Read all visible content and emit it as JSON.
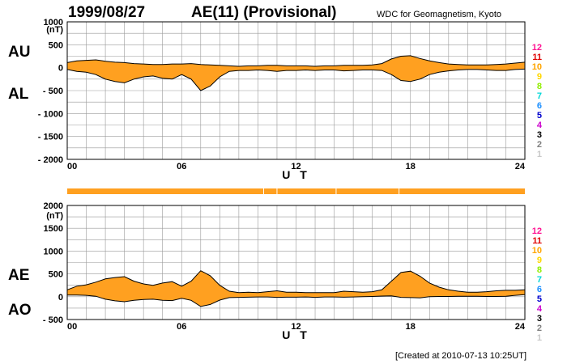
{
  "header": {
    "date": "1999/08/27",
    "title": "AE(11) (Provisional)",
    "source": "WDC for Geomagnetism, Kyoto"
  },
  "footer": {
    "created": "[Created at 2010-07-13 10:25UT]"
  },
  "colors": {
    "fill": "#ffa020",
    "line": "#000000",
    "grid": "#999999",
    "bar": "#ffa020"
  },
  "legend": {
    "items": [
      {
        "label": "12",
        "color": "#ff1493"
      },
      {
        "label": "11",
        "color": "#e00000"
      },
      {
        "label": "10",
        "color": "#ffa500"
      },
      {
        "label": "9",
        "color": "#ffd700"
      },
      {
        "label": "8",
        "color": "#90ee00"
      },
      {
        "label": "7",
        "color": "#00d8d8"
      },
      {
        "label": "6",
        "color": "#1e90ff"
      },
      {
        "label": "5",
        "color": "#0000cd"
      },
      {
        "label": "4",
        "color": "#cc00cc"
      },
      {
        "label": "3",
        "color": "#000000"
      },
      {
        "label": "2",
        "color": "#808080"
      },
      {
        "label": "1",
        "color": "#c8c8c8"
      }
    ]
  },
  "chart_data": [
    {
      "type": "area",
      "name_labels": [
        "AU",
        "AL"
      ],
      "unit": "(nT)",
      "xlabel": "U T",
      "xlim": [
        0,
        24
      ],
      "ylim": [
        -2000,
        1000
      ],
      "x_ticks": [
        "00",
        "06",
        "12",
        "18",
        "24"
      ],
      "y_ticks": [
        "1000",
        "500",
        "0",
        "- 500",
        "- 1000",
        "- 1500",
        "- 2000"
      ],
      "y_tick_values": [
        1000,
        500,
        0,
        -500,
        -1000,
        -1500,
        -2000
      ],
      "x": [
        0,
        0.5,
        1,
        1.5,
        2,
        2.5,
        3,
        3.5,
        4,
        4.5,
        5,
        5.5,
        6,
        6.5,
        7,
        7.5,
        8,
        8.5,
        9,
        9.5,
        10,
        10.5,
        11,
        11.5,
        12,
        12.5,
        13,
        13.5,
        14,
        14.5,
        15,
        15.5,
        16,
        16.5,
        17,
        17.5,
        18,
        18.5,
        19,
        19.5,
        20,
        20.5,
        21,
        21.5,
        22,
        22.5,
        23,
        23.5,
        24
      ],
      "series": [
        {
          "name": "AU",
          "values": [
            110,
            150,
            160,
            170,
            140,
            120,
            110,
            90,
            80,
            70,
            70,
            80,
            80,
            90,
            70,
            60,
            50,
            40,
            30,
            40,
            40,
            50,
            50,
            40,
            40,
            40,
            30,
            40,
            40,
            50,
            50,
            50,
            60,
            90,
            190,
            250,
            260,
            200,
            150,
            110,
            80,
            70,
            60,
            60,
            60,
            70,
            80,
            100,
            120
          ]
        },
        {
          "name": "AL",
          "values": [
            -40,
            -80,
            -100,
            -150,
            -250,
            -300,
            -330,
            -250,
            -200,
            -180,
            -230,
            -250,
            -150,
            -250,
            -500,
            -400,
            -200,
            -80,
            -60,
            -60,
            -50,
            -60,
            -80,
            -60,
            -60,
            -50,
            -60,
            -50,
            -50,
            -70,
            -60,
            -50,
            -50,
            -60,
            -150,
            -280,
            -300,
            -250,
            -150,
            -100,
            -70,
            -50,
            -40,
            -40,
            -50,
            -60,
            -60,
            -40,
            -30
          ]
        }
      ]
    },
    {
      "type": "area",
      "name_labels": [
        "AE",
        "AO"
      ],
      "unit": "(nT)",
      "xlabel": "U T",
      "xlim": [
        0,
        24
      ],
      "ylim": [
        -500,
        2000
      ],
      "x_ticks": [
        "00",
        "06",
        "12",
        "18",
        "24"
      ],
      "y_ticks": [
        "2000",
        "1500",
        "1000",
        "500",
        "0",
        "- 500"
      ],
      "y_tick_values": [
        2000,
        1500,
        1000,
        500,
        0,
        -500
      ],
      "x": [
        0,
        0.5,
        1,
        1.5,
        2,
        2.5,
        3,
        3.5,
        4,
        4.5,
        5,
        5.5,
        6,
        6.5,
        7,
        7.5,
        8,
        8.5,
        9,
        9.5,
        10,
        10.5,
        11,
        11.5,
        12,
        12.5,
        13,
        13.5,
        14,
        14.5,
        15,
        15.5,
        16,
        16.5,
        17,
        17.5,
        18,
        18.5,
        19,
        19.5,
        20,
        20.5,
        21,
        21.5,
        22,
        22.5,
        23,
        23.5,
        24
      ],
      "series": [
        {
          "name": "AE",
          "values": [
            150,
            230,
            260,
            320,
            390,
            420,
            440,
            340,
            280,
            250,
            300,
            330,
            230,
            340,
            570,
            460,
            250,
            120,
            90,
            100,
            90,
            110,
            130,
            100,
            100,
            90,
            90,
            90,
            90,
            120,
            110,
            100,
            110,
            150,
            340,
            530,
            560,
            450,
            300,
            210,
            150,
            120,
            100,
            100,
            110,
            130,
            140,
            140,
            150
          ]
        },
        {
          "name": "AO",
          "values": [
            35,
            35,
            30,
            10,
            -55,
            -90,
            -110,
            -80,
            -60,
            -55,
            -80,
            -85,
            -35,
            -80,
            -215,
            -170,
            -75,
            -20,
            -15,
            -10,
            -5,
            -5,
            -15,
            -10,
            -10,
            -5,
            -15,
            -5,
            -5,
            -10,
            -5,
            0,
            5,
            15,
            20,
            -15,
            -20,
            -25,
            0,
            5,
            5,
            10,
            10,
            10,
            5,
            5,
            10,
            30,
            45
          ]
        }
      ]
    }
  ]
}
